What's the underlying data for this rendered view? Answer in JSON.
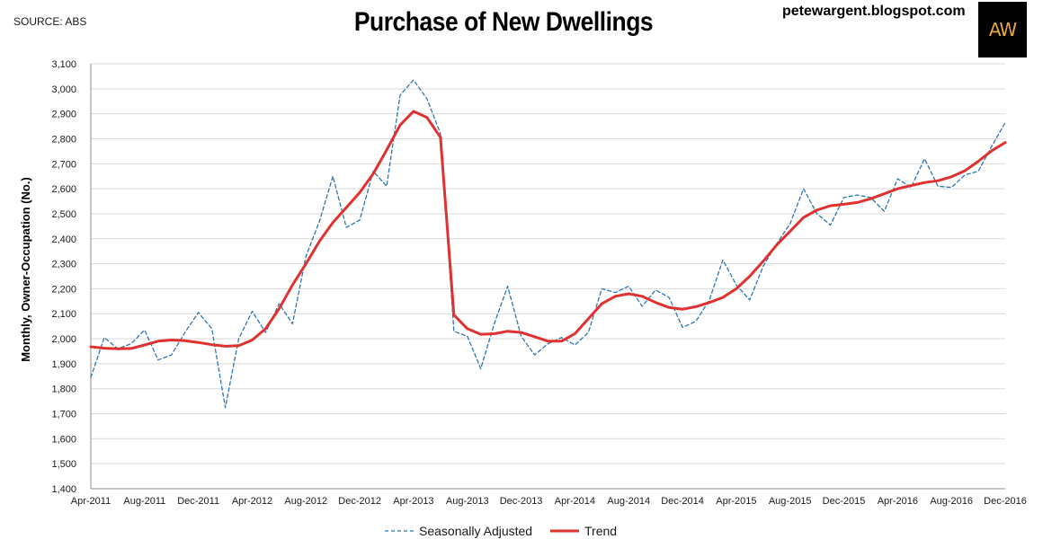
{
  "source_note": "SOURCE: ABS",
  "site": "petewargent.blogspot.com",
  "logo_text": "AW",
  "chart_data": {
    "type": "line",
    "title": "Purchase of New Dwellings",
    "ylabel": "Monthly, Owner-Occupation (No.)",
    "xlabel": "",
    "ylim": [
      1400,
      3100
    ],
    "yticks": [
      1400,
      1500,
      1600,
      1700,
      1800,
      1900,
      2000,
      2100,
      2200,
      2300,
      2400,
      2500,
      2600,
      2700,
      2800,
      2900,
      3000,
      3100
    ],
    "ytick_labels": [
      "1,400",
      "1,500",
      "1,600",
      "1,700",
      "1,800",
      "1,900",
      "2,000",
      "2,100",
      "2,200",
      "2,300",
      "2,400",
      "2,500",
      "2,600",
      "2,700",
      "2,800",
      "2,900",
      "3,000",
      "3,100"
    ],
    "xtick_labels": [
      "Apr-2011",
      "Aug-2011",
      "Dec-2011",
      "Apr-2012",
      "Aug-2012",
      "Dec-2012",
      "Apr-2013",
      "Aug-2013",
      "Dec-2013",
      "Apr-2014",
      "Aug-2014",
      "Dec-2014",
      "Apr-2015",
      "Aug-2015",
      "Dec-2015",
      "Apr-2016",
      "Aug-2016",
      "Dec-2016"
    ],
    "x": [
      "Apr-2011",
      "May-2011",
      "Jun-2011",
      "Jul-2011",
      "Aug-2011",
      "Sep-2011",
      "Oct-2011",
      "Nov-2011",
      "Dec-2011",
      "Jan-2012",
      "Feb-2012",
      "Mar-2012",
      "Apr-2012",
      "May-2012",
      "Jun-2012",
      "Jul-2012",
      "Aug-2012",
      "Sep-2012",
      "Oct-2012",
      "Nov-2012",
      "Dec-2012",
      "Jan-2013",
      "Feb-2013",
      "Mar-2013",
      "Apr-2013",
      "May-2013",
      "Jun-2013",
      "Jul-2013",
      "Aug-2013",
      "Sep-2013",
      "Oct-2013",
      "Nov-2013",
      "Dec-2013",
      "Jan-2014",
      "Feb-2014",
      "Mar-2014",
      "Apr-2014",
      "May-2014",
      "Jun-2014",
      "Jul-2014",
      "Aug-2014",
      "Sep-2014",
      "Oct-2014",
      "Nov-2014",
      "Dec-2014",
      "Jan-2015",
      "Feb-2015",
      "Mar-2015",
      "Apr-2015",
      "May-2015",
      "Jun-2015",
      "Jul-2015",
      "Aug-2015",
      "Sep-2015",
      "Oct-2015",
      "Nov-2015",
      "Dec-2015",
      "Jan-2016",
      "Feb-2016",
      "Mar-2016",
      "Apr-2016",
      "May-2016",
      "Jun-2016",
      "Jul-2016",
      "Aug-2016",
      "Sep-2016",
      "Oct-2016",
      "Nov-2016",
      "Dec-2016"
    ],
    "series": [
      {
        "name": "Seasonally Adjusted",
        "color": "#2e75b6",
        "style": "dashed",
        "values": [
          1845,
          2005,
          1960,
          1980,
          2035,
          1915,
          1935,
          2025,
          2105,
          2040,
          1725,
          2000,
          2110,
          2025,
          2140,
          2060,
          2330,
          2470,
          2650,
          2445,
          2475,
          2670,
          2610,
          2975,
          3035,
          2960,
          2820,
          2030,
          2010,
          1880,
          2060,
          2210,
          2010,
          1935,
          1980,
          2005,
          1975,
          2025,
          2200,
          2185,
          2210,
          2130,
          2195,
          2165,
          2045,
          2070,
          2155,
          2315,
          2215,
          2155,
          2290,
          2380,
          2460,
          2600,
          2500,
          2455,
          2565,
          2575,
          2565,
          2510,
          2640,
          2605,
          2720,
          2610,
          2605,
          2655,
          2670,
          2770,
          2865
        ]
      },
      {
        "name": "Trend",
        "color": "#e03131",
        "style": "solid",
        "values": [
          1968,
          1962,
          1960,
          1961,
          1975,
          1990,
          1995,
          1992,
          1985,
          1976,
          1970,
          1972,
          1995,
          2040,
          2120,
          2215,
          2300,
          2390,
          2465,
          2525,
          2585,
          2660,
          2755,
          2855,
          2910,
          2885,
          2805,
          2095,
          2040,
          2018,
          2020,
          2030,
          2025,
          2008,
          1990,
          1990,
          2020,
          2080,
          2140,
          2170,
          2180,
          2170,
          2145,
          2125,
          2118,
          2128,
          2145,
          2165,
          2200,
          2250,
          2310,
          2375,
          2430,
          2485,
          2515,
          2532,
          2538,
          2545,
          2560,
          2580,
          2600,
          2613,
          2625,
          2632,
          2648,
          2672,
          2710,
          2752,
          2785
        ]
      }
    ],
    "grid": "horizontal",
    "legend": "bottom-center"
  }
}
